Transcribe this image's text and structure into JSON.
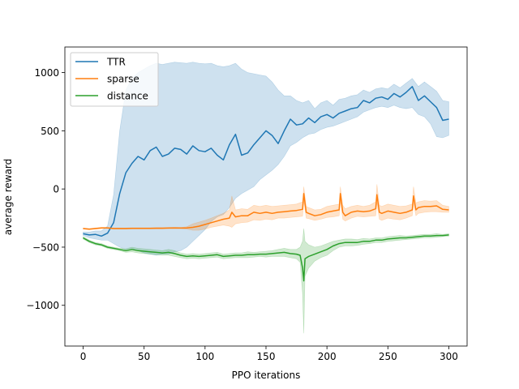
{
  "chart_data": {
    "type": "line",
    "xlabel": "PPO iterations",
    "ylabel": "average reward",
    "xlim": [
      -15,
      315
    ],
    "ylim": [
      -1350,
      1220
    ],
    "xticks": [
      0,
      50,
      100,
      150,
      200,
      250,
      300
    ],
    "yticks": [
      -1000,
      -500,
      0,
      500,
      1000
    ],
    "xtick_labels": [
      "0",
      "50",
      "100",
      "150",
      "200",
      "250",
      "300"
    ],
    "ytick_labels": [
      "−1000",
      "−500",
      "0",
      "500",
      "1000"
    ],
    "legend_position": "upper-left",
    "grid": false,
    "series": [
      {
        "name": "TTR",
        "color": "#1f77b4",
        "x": [
          0,
          5,
          10,
          15,
          20,
          25,
          30,
          35,
          40,
          45,
          50,
          55,
          60,
          65,
          70,
          75,
          80,
          85,
          90,
          95,
          100,
          105,
          110,
          115,
          120,
          125,
          130,
          135,
          140,
          145,
          150,
          155,
          160,
          165,
          170,
          175,
          180,
          185,
          190,
          195,
          200,
          205,
          210,
          215,
          220,
          225,
          230,
          235,
          240,
          245,
          250,
          255,
          260,
          265,
          270,
          275,
          280,
          285,
          290,
          295,
          300
        ],
        "mean": [
          -385,
          -395,
          -390,
          -405,
          -380,
          -290,
          -40,
          140,
          220,
          280,
          250,
          330,
          360,
          280,
          300,
          350,
          340,
          300,
          370,
          330,
          320,
          350,
          290,
          250,
          380,
          470,
          290,
          310,
          380,
          440,
          500,
          460,
          390,
          500,
          600,
          550,
          560,
          610,
          570,
          620,
          640,
          610,
          650,
          670,
          690,
          700,
          760,
          740,
          780,
          790,
          770,
          820,
          790,
          830,
          880,
          760,
          800,
          750,
          700,
          590,
          600
        ],
        "lower": [
          -400,
          -420,
          -430,
          -440,
          -440,
          -470,
          -500,
          -520,
          -510,
          -530,
          -550,
          -560,
          -570,
          -560,
          -560,
          -540,
          -530,
          -500,
          -450,
          -400,
          -350,
          -280,
          -240,
          -220,
          -160,
          -80,
          -40,
          -10,
          20,
          80,
          120,
          160,
          210,
          280,
          370,
          400,
          440,
          470,
          480,
          510,
          530,
          540,
          560,
          580,
          600,
          620,
          660,
          680,
          700,
          710,
          700,
          720,
          700,
          690,
          700,
          640,
          620,
          560,
          450,
          440,
          460
        ],
        "upper": [
          -370,
          -370,
          -360,
          -360,
          -320,
          -50,
          500,
          850,
          950,
          1000,
          1030,
          1060,
          1080,
          1070,
          1080,
          1090,
          1085,
          1080,
          1090,
          1080,
          1075,
          1080,
          1060,
          1050,
          1060,
          1080,
          1030,
          1000,
          990,
          980,
          970,
          920,
          850,
          800,
          800,
          760,
          740,
          760,
          690,
          740,
          760,
          720,
          770,
          780,
          800,
          810,
          850,
          830,
          860,
          870,
          860,
          900,
          870,
          910,
          950,
          880,
          920,
          880,
          840,
          760,
          750
        ]
      },
      {
        "name": "sparse",
        "color": "#ff7f0e",
        "x": [
          0,
          5,
          10,
          15,
          20,
          25,
          30,
          35,
          40,
          45,
          50,
          55,
          60,
          65,
          70,
          75,
          80,
          85,
          90,
          95,
          100,
          105,
          110,
          115,
          120,
          122,
          125,
          130,
          135,
          140,
          145,
          150,
          155,
          160,
          165,
          170,
          175,
          180,
          181,
          183,
          185,
          190,
          195,
          200,
          205,
          210,
          211,
          213,
          215,
          220,
          225,
          230,
          235,
          240,
          241,
          243,
          245,
          250,
          255,
          260,
          265,
          270,
          271,
          273,
          275,
          280,
          285,
          290,
          295,
          300
        ],
        "mean": [
          -340,
          -345,
          -340,
          -335,
          -335,
          -340,
          -340,
          -340,
          -338,
          -338,
          -338,
          -338,
          -337,
          -337,
          -336,
          -335,
          -336,
          -335,
          -330,
          -320,
          -305,
          -290,
          -275,
          -260,
          -250,
          -200,
          -240,
          -230,
          -230,
          -200,
          -210,
          -200,
          -210,
          -200,
          -195,
          -190,
          -185,
          -175,
          -40,
          -200,
          -210,
          -230,
          -220,
          -200,
          -190,
          -180,
          -40,
          -200,
          -230,
          -200,
          -190,
          -195,
          -190,
          -170,
          -50,
          -200,
          -210,
          -190,
          -200,
          -210,
          -200,
          -180,
          -60,
          -180,
          -160,
          -150,
          -150,
          -145,
          -175,
          -180
        ],
        "lower": [
          -345,
          -350,
          -345,
          -340,
          -340,
          -345,
          -345,
          -345,
          -343,
          -343,
          -343,
          -343,
          -342,
          -342,
          -341,
          -340,
          -341,
          -345,
          -355,
          -355,
          -345,
          -330,
          -320,
          -310,
          -320,
          -330,
          -300,
          -290,
          -285,
          -265,
          -270,
          -260,
          -265,
          -250,
          -250,
          -245,
          -240,
          -235,
          -100,
          -250,
          -255,
          -270,
          -260,
          -245,
          -240,
          -230,
          -100,
          -260,
          -275,
          -250,
          -235,
          -240,
          -235,
          -230,
          -120,
          -260,
          -270,
          -250,
          -260,
          -265,
          -250,
          -230,
          -120,
          -230,
          -210,
          -200,
          -195,
          -195,
          -200,
          -200
        ],
        "upper": [
          -335,
          -340,
          -335,
          -330,
          -330,
          -335,
          -335,
          -335,
          -333,
          -333,
          -333,
          -333,
          -332,
          -332,
          -331,
          -330,
          -331,
          -325,
          -300,
          -285,
          -270,
          -250,
          -230,
          -210,
          -180,
          -60,
          -180,
          -170,
          -175,
          -140,
          -150,
          -140,
          -150,
          -145,
          -140,
          -135,
          -130,
          -110,
          20,
          -150,
          -160,
          -180,
          -175,
          -150,
          -140,
          -130,
          20,
          -140,
          -170,
          -150,
          -140,
          -150,
          -140,
          -110,
          40,
          -140,
          -150,
          -130,
          -140,
          -150,
          -145,
          -130,
          20,
          -120,
          -110,
          -100,
          -105,
          -100,
          -140,
          -150
        ]
      },
      {
        "name": "distance",
        "color": "#2ca02c",
        "x": [
          0,
          5,
          10,
          15,
          20,
          25,
          30,
          35,
          40,
          45,
          50,
          55,
          60,
          65,
          70,
          75,
          80,
          85,
          90,
          95,
          100,
          105,
          110,
          115,
          120,
          125,
          130,
          135,
          140,
          145,
          150,
          155,
          160,
          165,
          170,
          175,
          178,
          180,
          181,
          182,
          185,
          190,
          195,
          200,
          205,
          210,
          215,
          220,
          225,
          230,
          235,
          240,
          245,
          250,
          255,
          260,
          265,
          270,
          275,
          280,
          285,
          290,
          295,
          300
        ],
        "mean": [
          -420,
          -450,
          -470,
          -480,
          -500,
          -510,
          -520,
          -530,
          -520,
          -530,
          -535,
          -540,
          -545,
          -550,
          -545,
          -555,
          -570,
          -580,
          -575,
          -580,
          -575,
          -570,
          -565,
          -580,
          -575,
          -570,
          -570,
          -565,
          -565,
          -560,
          -560,
          -555,
          -550,
          -545,
          -555,
          -560,
          -570,
          -680,
          -790,
          -600,
          -580,
          -560,
          -540,
          -520,
          -490,
          -470,
          -460,
          -460,
          -460,
          -450,
          -450,
          -440,
          -440,
          -430,
          -425,
          -420,
          -420,
          -415,
          -410,
          -405,
          -405,
          -400,
          -400,
          -395
        ],
        "lower": [
          -430,
          -460,
          -480,
          -490,
          -510,
          -520,
          -530,
          -545,
          -540,
          -550,
          -555,
          -560,
          -565,
          -570,
          -570,
          -580,
          -590,
          -600,
          -595,
          -600,
          -595,
          -590,
          -585,
          -600,
          -595,
          -590,
          -590,
          -590,
          -585,
          -580,
          -585,
          -580,
          -580,
          -580,
          -590,
          -600,
          -630,
          -900,
          -1240,
          -750,
          -680,
          -620,
          -590,
          -570,
          -530,
          -500,
          -490,
          -490,
          -485,
          -475,
          -470,
          -460,
          -460,
          -450,
          -445,
          -440,
          -435,
          -430,
          -425,
          -420,
          -420,
          -415,
          -410,
          -405
        ],
        "upper": [
          -410,
          -440,
          -460,
          -470,
          -490,
          -500,
          -510,
          -515,
          -500,
          -510,
          -515,
          -520,
          -525,
          -530,
          -520,
          -530,
          -550,
          -560,
          -555,
          -560,
          -555,
          -550,
          -545,
          -560,
          -555,
          -550,
          -550,
          -540,
          -545,
          -540,
          -535,
          -530,
          -520,
          -510,
          -520,
          -520,
          -500,
          -450,
          -340,
          -450,
          -480,
          -500,
          -490,
          -470,
          -450,
          -440,
          -430,
          -430,
          -435,
          -425,
          -430,
          -420,
          -420,
          -410,
          -405,
          -400,
          -405,
          -400,
          -395,
          -390,
          -390,
          -385,
          -390,
          -385
        ]
      }
    ]
  }
}
